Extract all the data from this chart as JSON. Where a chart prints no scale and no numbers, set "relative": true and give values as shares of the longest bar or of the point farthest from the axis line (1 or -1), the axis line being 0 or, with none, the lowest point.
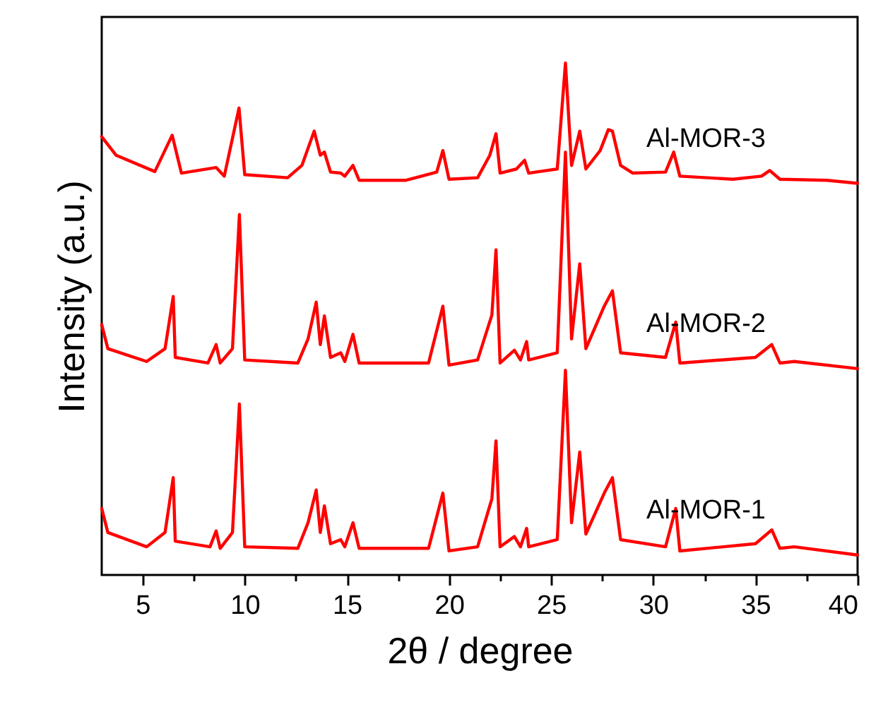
{
  "chart_data": {
    "type": "line",
    "relative": true,
    "xlabel": "2θ / degree",
    "ylabel": "Intensity (a.u.)",
    "xlim": [
      3,
      40
    ],
    "xticks": [
      5,
      {
        "value": 7.5,
        "label": null
      },
      10,
      {
        "value": 12.5,
        "label": null
      },
      15,
      {
        "value": 17.5,
        "label": null
      },
      20,
      {
        "value": 22.5,
        "label": null
      },
      25,
      {
        "value": 27.5,
        "label": null
      },
      30,
      {
        "value": 32.5,
        "label": null
      },
      35,
      {
        "value": 37.5,
        "label": null
      },
      40
    ],
    "grid": false,
    "marker": "none",
    "line_style": "solid",
    "series": [
      {
        "name": "Al-MOR-1",
        "color": "#ff0000",
        "x": [
          3,
          3.3,
          5.2,
          6.1,
          6.5,
          6.6,
          8.3,
          8.6,
          8.8,
          9.4,
          9.74,
          10.0,
          12.6,
          13.1,
          13.5,
          13.7,
          13.9,
          14.2,
          14.7,
          14.9,
          15.3,
          15.6,
          19.0,
          19.7,
          20.0,
          21.4,
          22.1,
          22.3,
          22.5,
          23.2,
          23.5,
          23.8,
          23.9,
          25.3,
          25.7,
          26.0,
          26.4,
          26.7,
          27.6,
          28.0,
          28.4,
          30.6,
          31.1,
          31.3,
          35.0,
          35.8,
          36.2,
          36.9,
          40
        ],
        "values": [
          0.13,
          0.083,
          0.055,
          0.083,
          0.19,
          0.066,
          0.055,
          0.086,
          0.052,
          0.083,
          0.334,
          0.055,
          0.052,
          0.102,
          0.166,
          0.083,
          0.135,
          0.061,
          0.069,
          0.055,
          0.102,
          0.052,
          0.052,
          0.16,
          0.047,
          0.055,
          0.149,
          0.262,
          0.055,
          0.075,
          0.055,
          0.091,
          0.055,
          0.069,
          0.4,
          0.102,
          0.24,
          0.08,
          0.16,
          0.19,
          0.069,
          0.055,
          0.13,
          0.047,
          0.061,
          0.088,
          0.052,
          0.055,
          0.039
        ]
      },
      {
        "name": "Al-MOR-2",
        "color": "#ff0000",
        "x": [
          3,
          3.3,
          5.2,
          6.1,
          6.5,
          6.6,
          8.2,
          8.6,
          8.8,
          9.4,
          9.74,
          10.0,
          12.6,
          13.1,
          13.5,
          13.7,
          13.9,
          14.2,
          14.7,
          14.9,
          15.3,
          15.6,
          19.0,
          19.7,
          20.0,
          21.4,
          22.1,
          22.3,
          22.5,
          23.2,
          23.5,
          23.8,
          23.9,
          25.3,
          25.7,
          26.0,
          26.4,
          26.7,
          27.6,
          28.0,
          28.4,
          30.6,
          31.1,
          31.3,
          35.0,
          35.8,
          36.2,
          36.9,
          40
        ],
        "values": [
          0.489,
          0.442,
          0.417,
          0.442,
          0.544,
          0.425,
          0.414,
          0.45,
          0.414,
          0.442,
          0.704,
          0.42,
          0.414,
          0.461,
          0.533,
          0.45,
          0.506,
          0.425,
          0.434,
          0.417,
          0.47,
          0.414,
          0.414,
          0.525,
          0.41,
          0.42,
          0.508,
          0.635,
          0.414,
          0.439,
          0.42,
          0.456,
          0.42,
          0.434,
          0.826,
          0.461,
          0.608,
          0.442,
          0.525,
          0.555,
          0.434,
          0.425,
          0.494,
          0.414,
          0.425,
          0.45,
          0.414,
          0.417,
          0.403
        ]
      },
      {
        "name": "Al-MOR-3",
        "color": "#ff0000",
        "x": [
          3,
          3.7,
          5.6,
          6.45,
          6.9,
          8.6,
          9.0,
          9.72,
          10.0,
          12.1,
          12.8,
          13.4,
          13.7,
          13.9,
          14.2,
          14.7,
          14.9,
          15.3,
          15.6,
          17.9,
          19.4,
          19.7,
          20.0,
          21.4,
          22.0,
          22.3,
          22.5,
          23.3,
          23.7,
          23.9,
          25.3,
          25.7,
          26.0,
          26.4,
          26.7,
          27.4,
          27.8,
          28.0,
          28.4,
          29.0,
          30.6,
          31.0,
          31.3,
          33.9,
          35.3,
          35.7,
          36.2,
          38.5,
          40
        ],
        "values": [
          0.856,
          0.82,
          0.788,
          0.859,
          0.785,
          0.796,
          0.779,
          0.912,
          0.782,
          0.776,
          0.8,
          0.867,
          0.82,
          0.826,
          0.787,
          0.785,
          0.779,
          0.8,
          0.771,
          0.771,
          0.787,
          0.829,
          0.773,
          0.776,
          0.82,
          0.862,
          0.785,
          0.793,
          0.81,
          0.785,
          0.793,
          1.0,
          0.8,
          0.867,
          0.793,
          0.829,
          0.87,
          0.867,
          0.8,
          0.785,
          0.787,
          0.826,
          0.779,
          0.773,
          0.779,
          0.79,
          0.773,
          0.771,
          0.765
        ]
      }
    ]
  }
}
